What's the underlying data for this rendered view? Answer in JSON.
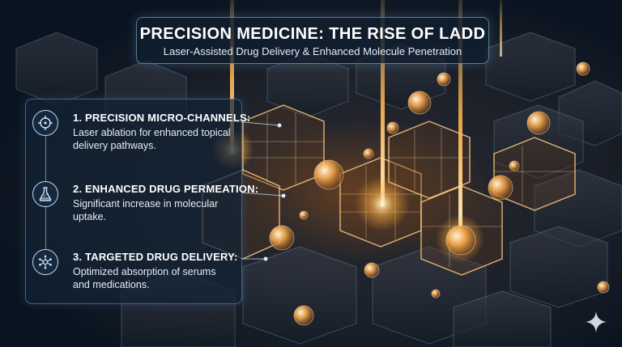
{
  "header": {
    "title": "PRECISION MEDICINE: THE RISE OF LADD",
    "subtitle": "Laser-Assisted Drug Delivery & Enhanced Molecule Penetration"
  },
  "features": [
    {
      "title": "1. PRECISION MICRO-CHANNELS:",
      "description": "Laser ablation for enhanced topical delivery pathways.",
      "icon": "target-crosshair-icon"
    },
    {
      "title": "2. ENHANCED DRUG PERMEATION:",
      "description": "Significant increase in molecular uptake.",
      "icon": "flask-icon"
    },
    {
      "title": "3. TARGETED DRUG DELIVERY:",
      "description": "Optimized absorption of serums and medications.",
      "icon": "molecule-network-icon"
    }
  ],
  "colors": {
    "background": "#0c1622",
    "cell_glow": "#ffb35a",
    "laser_beam": "#ffd27a",
    "panel_border": "#8fbde0"
  },
  "watermark_icon": "sparkle-icon"
}
